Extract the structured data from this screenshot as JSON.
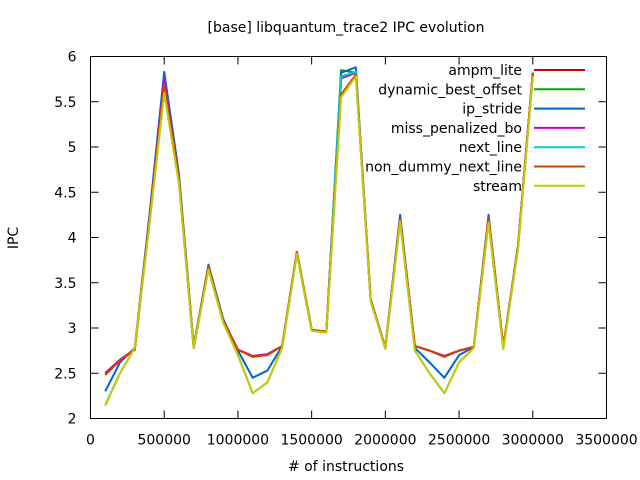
{
  "chart_data": {
    "type": "line",
    "title": "[base] libquantum_trace2 IPC evolution",
    "xlabel": "# of instructions",
    "ylabel": "IPC",
    "xlim": [
      0,
      3500000
    ],
    "ylim": [
      2,
      6
    ],
    "xticks": [
      0,
      500000,
      1000000,
      1500000,
      2000000,
      2500000,
      3000000,
      3500000
    ],
    "yticks": [
      2,
      2.5,
      3,
      3.5,
      4,
      4.5,
      5,
      5.5,
      6
    ],
    "xtick_labels": [
      "0",
      "500000",
      "1000000",
      "1500000",
      "2000000",
      "2500000",
      "3000000",
      "3500000"
    ],
    "ytick_labels": [
      "2",
      "2.5",
      "3",
      "3.5",
      "4",
      "4.5",
      "5",
      "5.5",
      "6"
    ],
    "grid": false,
    "legend_position": "top-right",
    "x": [
      100000,
      200000,
      300000,
      400000,
      500000,
      600000,
      700000,
      800000,
      900000,
      1000000,
      1100000,
      1200000,
      1300000,
      1400000,
      1500000,
      1600000,
      1700000,
      1800000,
      1900000,
      2000000,
      2100000,
      2200000,
      2300000,
      2400000,
      2500000,
      2600000,
      2700000,
      2800000,
      2900000,
      3000000
    ],
    "series": [
      {
        "name": "ampm_lite",
        "color": "#cc0000",
        "values": [
          2.5,
          2.65,
          2.76,
          4.2,
          5.75,
          4.65,
          2.78,
          3.68,
          3.08,
          2.76,
          2.69,
          2.71,
          2.8,
          3.84,
          2.98,
          2.96,
          5.76,
          5.82,
          3.32,
          2.78,
          4.22,
          2.8,
          2.75,
          2.69,
          2.75,
          2.79,
          4.22,
          2.79,
          3.9,
          5.82
        ]
      },
      {
        "name": "dynamic_best_offset",
        "color": "#00aa00",
        "values": [
          2.5,
          2.65,
          2.76,
          4.2,
          5.75,
          4.65,
          2.78,
          3.68,
          3.08,
          2.76,
          2.69,
          2.71,
          2.8,
          3.84,
          2.98,
          2.96,
          5.85,
          5.82,
          3.32,
          2.78,
          4.22,
          2.8,
          2.75,
          2.69,
          2.75,
          2.79,
          4.22,
          2.79,
          3.9,
          5.82
        ]
      },
      {
        "name": "ip_stride",
        "color": "#0066cc",
        "values": [
          2.3,
          2.62,
          2.78,
          4.25,
          5.83,
          4.7,
          2.8,
          3.7,
          3.1,
          2.75,
          2.45,
          2.53,
          2.8,
          3.84,
          2.98,
          2.96,
          5.82,
          5.88,
          3.32,
          2.78,
          4.25,
          2.78,
          2.62,
          2.45,
          2.7,
          2.79,
          4.25,
          2.78,
          3.92,
          5.8
        ]
      },
      {
        "name": "miss_penalized_bo",
        "color": "#cc00cc",
        "values": [
          2.5,
          2.65,
          2.76,
          4.2,
          5.75,
          4.65,
          2.78,
          3.68,
          3.08,
          2.76,
          2.69,
          2.71,
          2.8,
          3.84,
          2.98,
          2.96,
          5.76,
          5.82,
          3.32,
          2.78,
          4.22,
          2.8,
          2.75,
          2.69,
          2.75,
          2.79,
          4.22,
          2.79,
          3.9,
          5.82
        ]
      },
      {
        "name": "next_line",
        "color": "#00cccc",
        "values": [
          2.15,
          2.5,
          2.78,
          4.15,
          5.6,
          4.6,
          2.78,
          3.65,
          3.06,
          2.7,
          2.28,
          2.4,
          2.78,
          3.82,
          2.97,
          2.95,
          5.78,
          5.83,
          3.3,
          2.77,
          4.18,
          2.75,
          2.5,
          2.28,
          2.62,
          2.78,
          4.17,
          2.77,
          3.88,
          5.78
        ]
      },
      {
        "name": "non_dummy_next_line",
        "color": "#cc4400",
        "values": [
          2.48,
          2.64,
          2.76,
          4.2,
          5.7,
          4.65,
          2.78,
          3.68,
          3.08,
          2.76,
          2.68,
          2.7,
          2.8,
          3.84,
          2.98,
          2.96,
          5.58,
          5.8,
          3.32,
          2.78,
          4.2,
          2.8,
          2.75,
          2.68,
          2.75,
          2.79,
          4.22,
          2.79,
          3.9,
          5.82
        ]
      },
      {
        "name": "stream",
        "color": "#c8c800",
        "values": [
          2.14,
          2.5,
          2.78,
          4.15,
          5.6,
          4.6,
          2.78,
          3.65,
          3.06,
          2.7,
          2.28,
          2.4,
          2.78,
          3.82,
          2.97,
          2.95,
          5.55,
          5.78,
          3.3,
          2.77,
          4.18,
          2.75,
          2.5,
          2.28,
          2.62,
          2.78,
          4.17,
          2.77,
          3.88,
          5.78
        ]
      }
    ]
  }
}
